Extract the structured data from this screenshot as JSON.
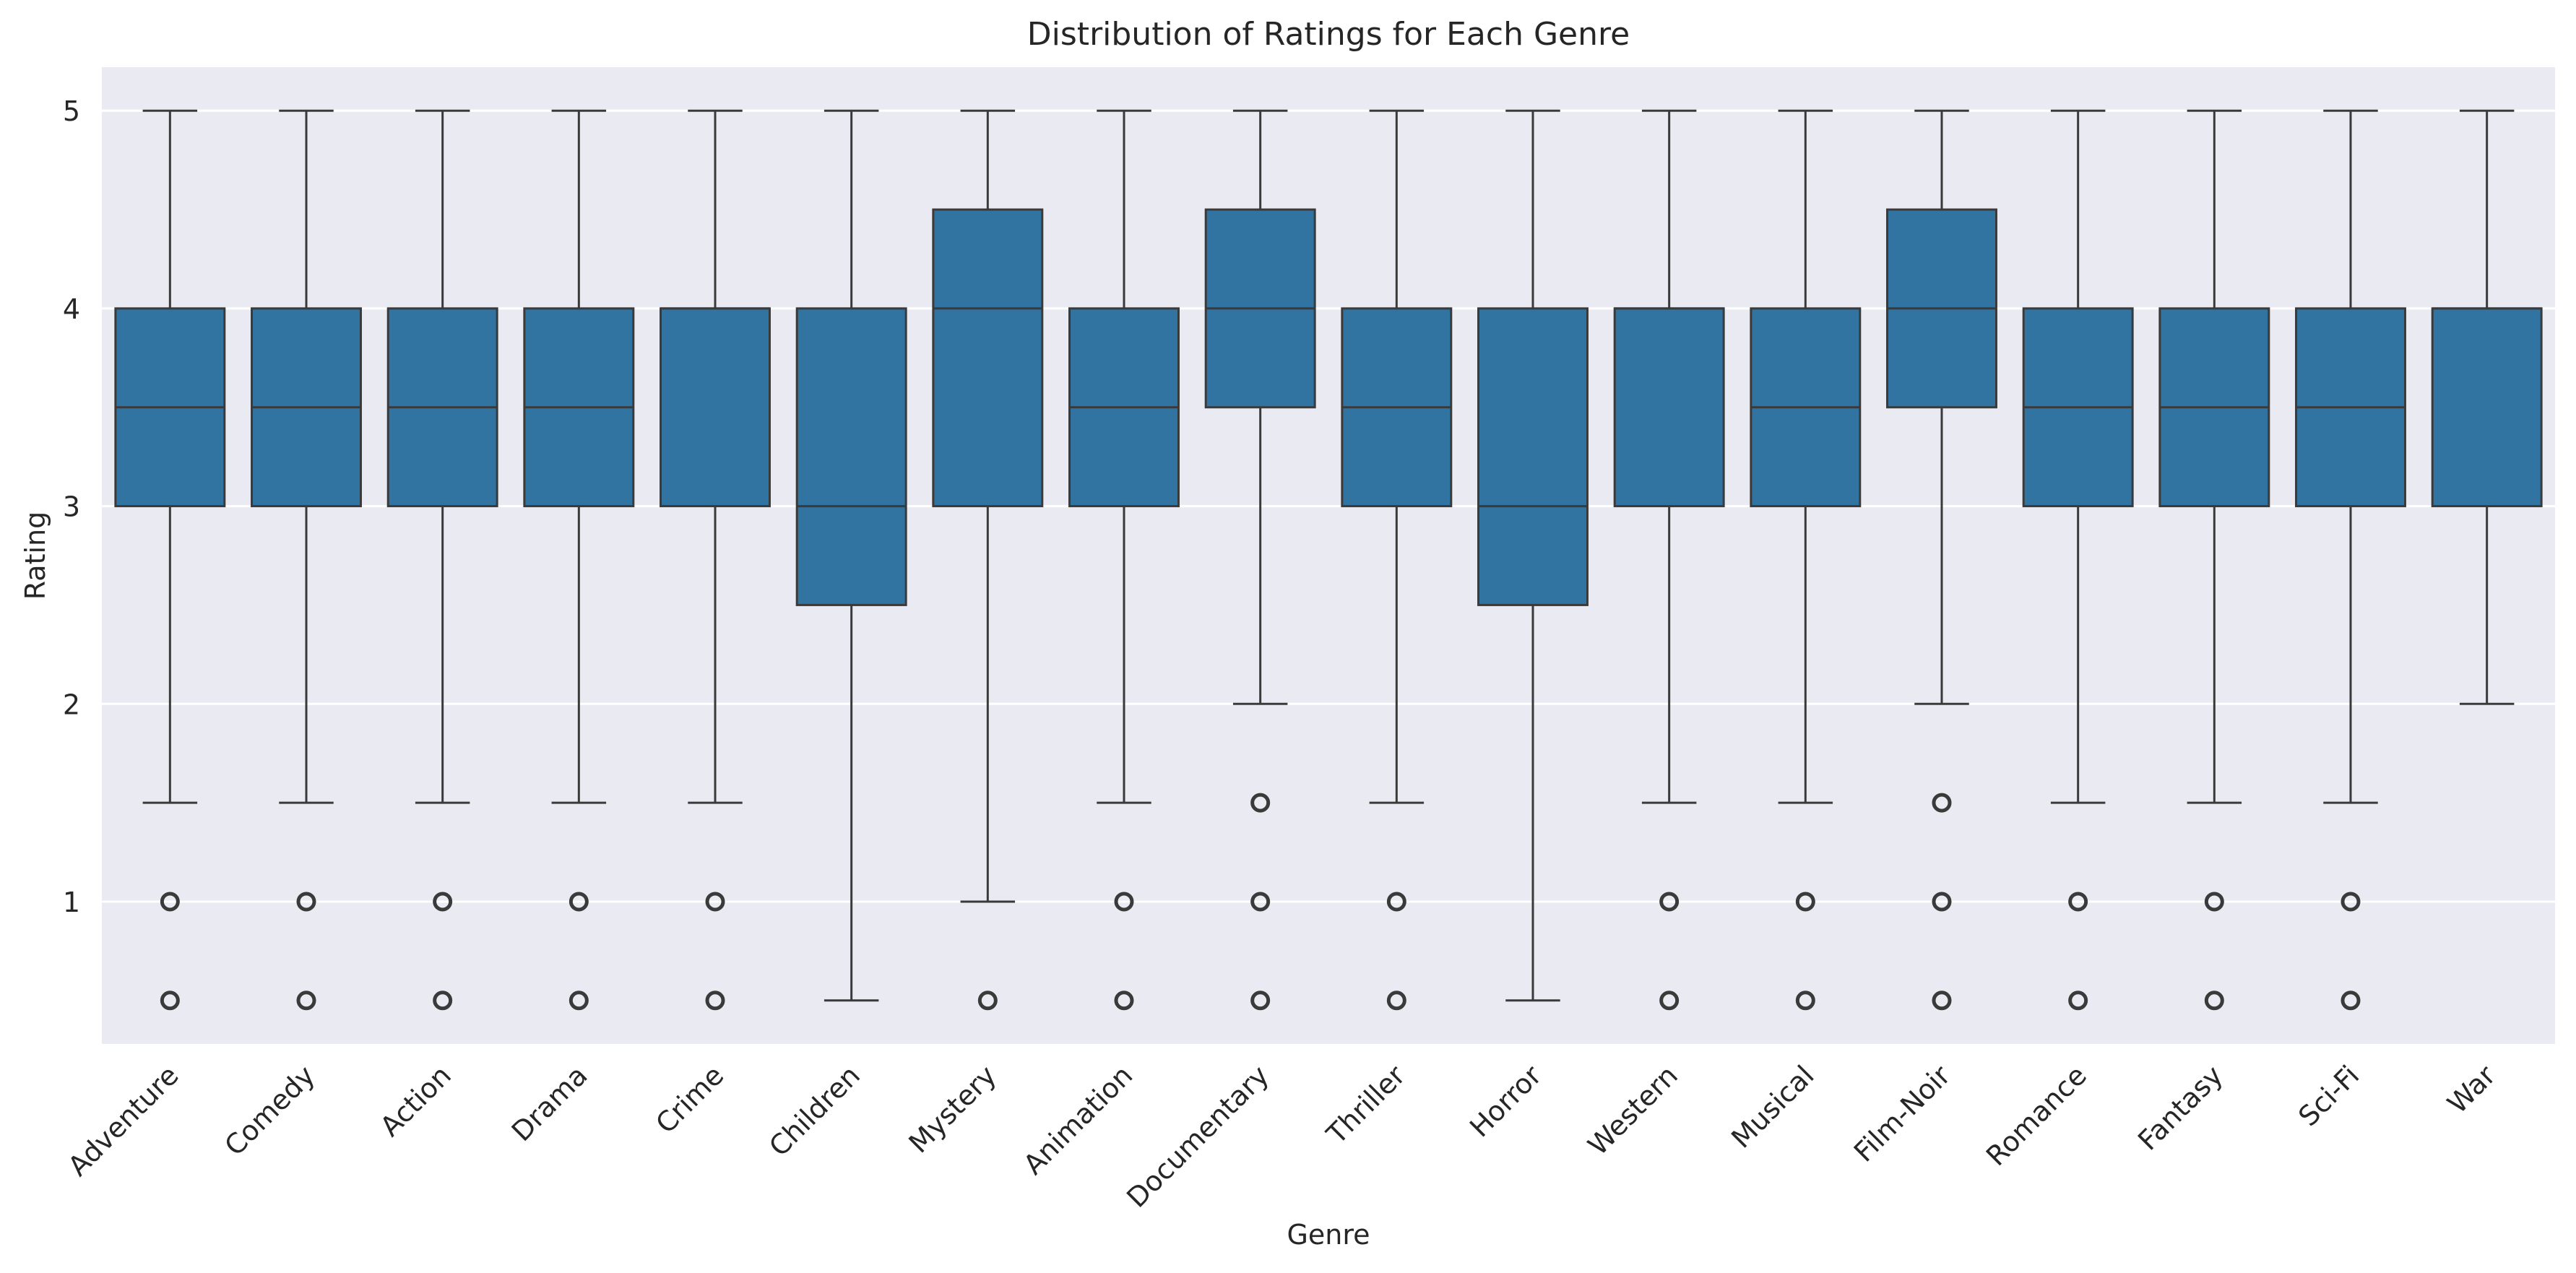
{
  "chart_data": {
    "type": "box",
    "title": "Distribution of Ratings for Each Genre",
    "xlabel": "Genre",
    "ylabel": "Rating",
    "ylim": [
      0.28,
      5.22
    ],
    "yticks": [
      1,
      2,
      3,
      4,
      5
    ],
    "grid": true,
    "legend": "none",
    "colors": {
      "box": "#3274a1",
      "edge": "#3a3a3a",
      "plot_bg": "#eaeaf2",
      "grid": "#ffffff"
    },
    "categories": [
      "Adventure",
      "Comedy",
      "Action",
      "Drama",
      "Crime",
      "Children",
      "Mystery",
      "Animation",
      "Documentary",
      "Thriller",
      "Horror",
      "Western",
      "Musical",
      "Film-Noir",
      "Romance",
      "Fantasy",
      "Sci-Fi",
      "War"
    ],
    "boxes": [
      {
        "q1": 3.0,
        "median": 3.5,
        "q3": 4.0,
        "whisker_low": 1.5,
        "whisker_high": 5.0,
        "outliers": [
          1.0,
          0.5
        ]
      },
      {
        "q1": 3.0,
        "median": 3.5,
        "q3": 4.0,
        "whisker_low": 1.5,
        "whisker_high": 5.0,
        "outliers": [
          1.0,
          0.5
        ]
      },
      {
        "q1": 3.0,
        "median": 3.5,
        "q3": 4.0,
        "whisker_low": 1.5,
        "whisker_high": 5.0,
        "outliers": [
          1.0,
          0.5
        ]
      },
      {
        "q1": 3.0,
        "median": 3.5,
        "q3": 4.0,
        "whisker_low": 1.5,
        "whisker_high": 5.0,
        "outliers": [
          1.0,
          0.5
        ]
      },
      {
        "q1": 3.0,
        "median": 4.0,
        "q3": 4.0,
        "whisker_low": 1.5,
        "whisker_high": 5.0,
        "outliers": [
          1.0,
          0.5
        ]
      },
      {
        "q1": 2.5,
        "median": 3.0,
        "q3": 4.0,
        "whisker_low": 0.5,
        "whisker_high": 5.0,
        "outliers": []
      },
      {
        "q1": 3.0,
        "median": 4.0,
        "q3": 4.5,
        "whisker_low": 1.0,
        "whisker_high": 5.0,
        "outliers": [
          0.5
        ]
      },
      {
        "q1": 3.0,
        "median": 3.5,
        "q3": 4.0,
        "whisker_low": 1.5,
        "whisker_high": 5.0,
        "outliers": [
          1.0,
          0.5
        ]
      },
      {
        "q1": 3.5,
        "median": 4.0,
        "q3": 4.5,
        "whisker_low": 2.0,
        "whisker_high": 5.0,
        "outliers": [
          1.5,
          1.0,
          0.5
        ]
      },
      {
        "q1": 3.0,
        "median": 3.5,
        "q3": 4.0,
        "whisker_low": 1.5,
        "whisker_high": 5.0,
        "outliers": [
          1.0,
          0.5
        ]
      },
      {
        "q1": 2.5,
        "median": 3.0,
        "q3": 4.0,
        "whisker_low": 0.5,
        "whisker_high": 5.0,
        "outliers": []
      },
      {
        "q1": 3.0,
        "median": 4.0,
        "q3": 4.0,
        "whisker_low": 1.5,
        "whisker_high": 5.0,
        "outliers": [
          1.0,
          0.5
        ]
      },
      {
        "q1": 3.0,
        "median": 3.5,
        "q3": 4.0,
        "whisker_low": 1.5,
        "whisker_high": 5.0,
        "outliers": [
          1.0,
          0.5
        ]
      },
      {
        "q1": 3.5,
        "median": 4.0,
        "q3": 4.5,
        "whisker_low": 2.0,
        "whisker_high": 5.0,
        "outliers": [
          1.5,
          1.0,
          0.5
        ]
      },
      {
        "q1": 3.0,
        "median": 3.5,
        "q3": 4.0,
        "whisker_low": 1.5,
        "whisker_high": 5.0,
        "outliers": [
          1.0,
          0.5
        ]
      },
      {
        "q1": 3.0,
        "median": 3.5,
        "q3": 4.0,
        "whisker_low": 1.5,
        "whisker_high": 5.0,
        "outliers": [
          1.0,
          0.5
        ]
      },
      {
        "q1": 3.0,
        "median": 3.5,
        "q3": 4.0,
        "whisker_low": 1.5,
        "whisker_high": 5.0,
        "outliers": [
          1.0,
          0.5
        ]
      },
      {
        "q1": 3.0,
        "median": 4.0,
        "q3": 4.0,
        "whisker_low": 2.0,
        "whisker_high": 5.0,
        "outliers": []
      }
    ]
  }
}
